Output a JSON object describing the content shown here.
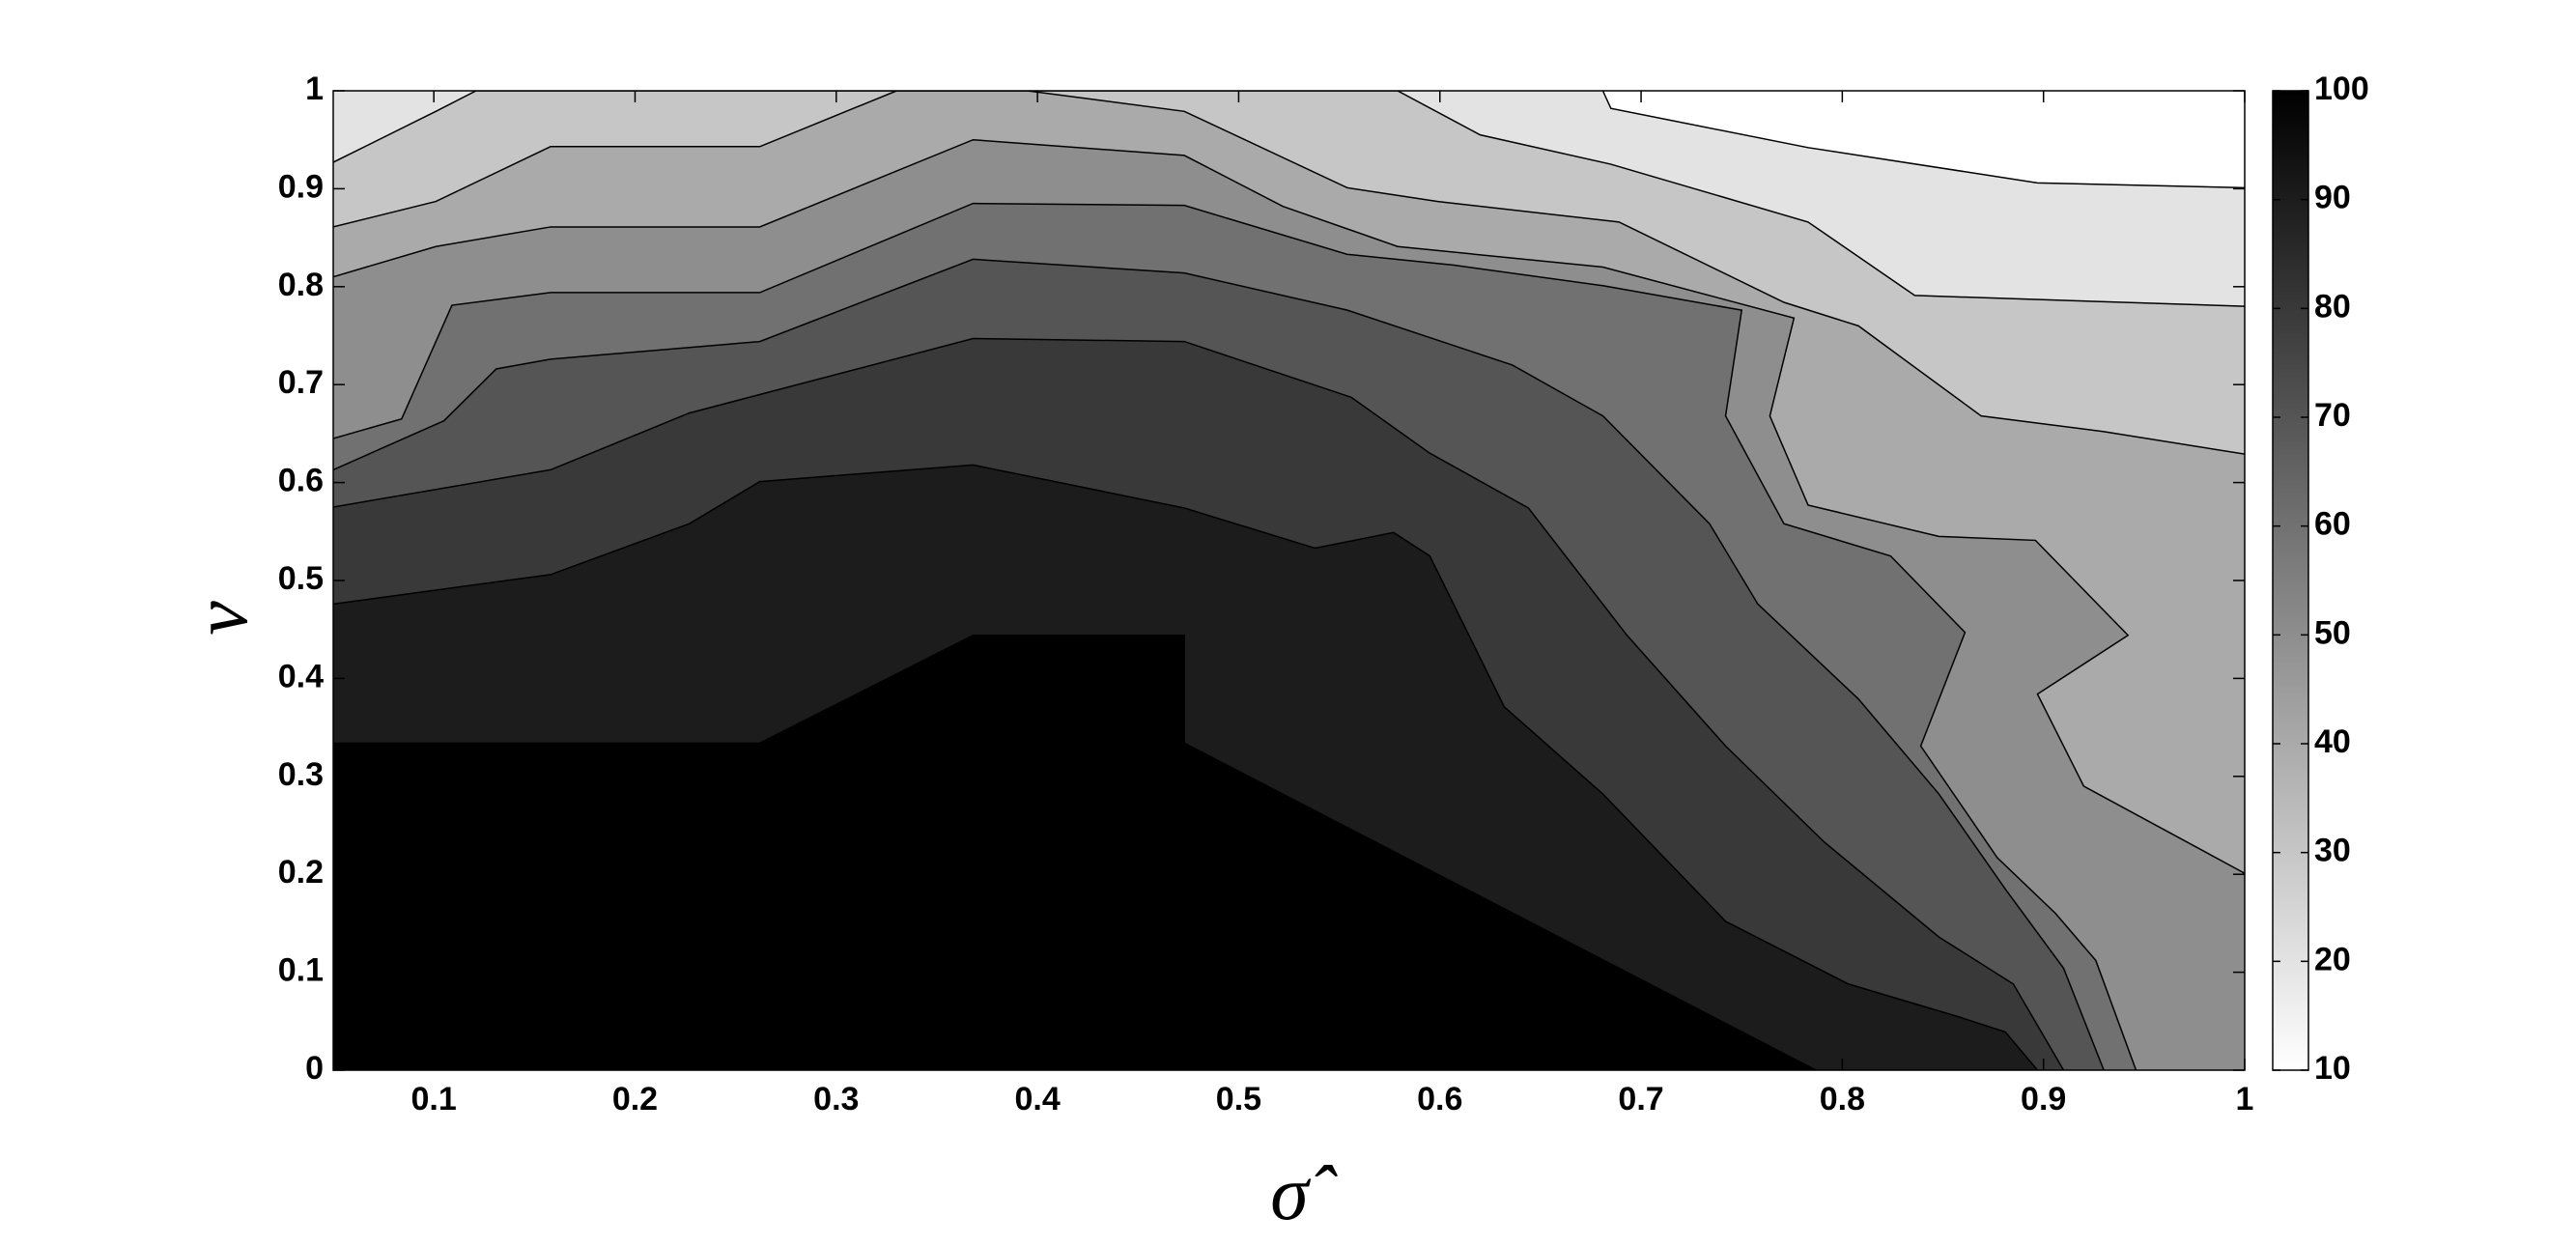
{
  "chart_data": {
    "type": "contour",
    "xlabel": "σ̂",
    "ylabel": "ν",
    "xlim": [
      0.05,
      1
    ],
    "ylim": [
      0,
      1
    ],
    "xticks": [
      0.1,
      0.2,
      0.3,
      0.4,
      0.5,
      0.6,
      0.7,
      0.8,
      0.9,
      1
    ],
    "yticks": [
      0,
      0.1,
      0.2,
      0.3,
      0.4,
      0.5,
      0.6,
      0.7,
      0.8,
      0.9,
      1
    ],
    "colormap": "gray",
    "clim": [
      10,
      100
    ],
    "cticks": [
      10,
      20,
      30,
      40,
      50,
      60,
      70,
      80,
      90,
      100
    ],
    "line_color": "#000000",
    "contours": [
      {
        "level": 20,
        "x": [
          0.681,
          0.685,
          0.783,
          0.897,
          1
        ],
        "y": [
          1,
          0.982,
          0.942,
          0.906,
          0.901
        ]
      },
      {
        "level": 30,
        "x": [
          0.05,
          0.101,
          0.121,
          0.579,
          0.62,
          0.685,
          0.783,
          0.836,
          1
        ],
        "y": [
          0.927,
          0.979,
          1,
          1,
          0.955,
          0.925,
          0.866,
          0.791,
          0.78
        ]
      },
      {
        "level": 40,
        "x": [
          0.05,
          0.101,
          0.158,
          0.262,
          0.33,
          0.395,
          0.473,
          0.554,
          0.599,
          0.689,
          0.771,
          0.808,
          0.869,
          0.93,
          1
        ],
        "y": [
          0.861,
          0.887,
          0.943,
          0.943,
          1,
          1,
          0.979,
          0.901,
          0.887,
          0.866,
          0.784,
          0.76,
          0.668,
          0.652,
          0.629
        ]
      },
      {
        "level": 50,
        "x": [
          0.05,
          0.101,
          0.158,
          0.262,
          0.368,
          0.473,
          0.522,
          0.579,
          0.681,
          0.776,
          0.764,
          0.783,
          0.848,
          0.896,
          0.942,
          0.897,
          0.92,
          1
        ],
        "y": [
          0.81,
          0.841,
          0.861,
          0.861,
          0.95,
          0.934,
          0.882,
          0.841,
          0.82,
          0.768,
          0.668,
          0.577,
          0.545,
          0.541,
          0.444,
          0.384,
          0.29,
          0.201
        ]
      },
      {
        "level": 60,
        "x": [
          0.05,
          0.084,
          0.109,
          0.158,
          0.262,
          0.368,
          0.473,
          0.554,
          0.607,
          0.681,
          0.75,
          0.742,
          0.771,
          0.824,
          0.861,
          0.839,
          0.877,
          0.906,
          0.926,
          0.946
        ],
        "y": [
          0.645,
          0.665,
          0.781,
          0.794,
          0.794,
          0.885,
          0.883,
          0.833,
          0.822,
          0.801,
          0.776,
          0.668,
          0.558,
          0.525,
          0.447,
          0.331,
          0.217,
          0.16,
          0.112,
          0
        ]
      },
      {
        "level": 70,
        "x": [
          0.05,
          0.105,
          0.131,
          0.158,
          0.262,
          0.368,
          0.473,
          0.554,
          0.636,
          0.681,
          0.734,
          0.758,
          0.808,
          0.848,
          0.881,
          0.91,
          0.93
        ],
        "y": [
          0.613,
          0.663,
          0.716,
          0.726,
          0.744,
          0.828,
          0.814,
          0.776,
          0.72,
          0.668,
          0.558,
          0.476,
          0.379,
          0.282,
          0.185,
          0.104,
          0
        ]
      },
      {
        "level": 80,
        "x": [
          0.05,
          0.158,
          0.227,
          0.368,
          0.473,
          0.556,
          0.595,
          0.644,
          0.693,
          0.742,
          0.791,
          0.848,
          0.885,
          0.91
        ],
        "y": [
          0.575,
          0.613,
          0.671,
          0.747,
          0.744,
          0.687,
          0.63,
          0.574,
          0.444,
          0.331,
          0.233,
          0.136,
          0.088,
          0
        ]
      },
      {
        "level": 90,
        "x": [
          0.05,
          0.158,
          0.227,
          0.262,
          0.368,
          0.473,
          0.538,
          0.577,
          0.595,
          0.632,
          0.681,
          0.742,
          0.803,
          0.857,
          0.881,
          0.897
        ],
        "y": [
          0.476,
          0.506,
          0.558,
          0.601,
          0.618,
          0.574,
          0.533,
          0.549,
          0.525,
          0.371,
          0.282,
          0.152,
          0.088,
          0.055,
          0.039,
          0
        ]
      },
      {
        "level": 100,
        "x": [
          0.05,
          0.262,
          0.368,
          0.473,
          0.473,
          0.787
        ],
        "y": [
          0.334,
          0.334,
          0.444,
          0.444,
          0.334,
          0
        ]
      }
    ]
  }
}
